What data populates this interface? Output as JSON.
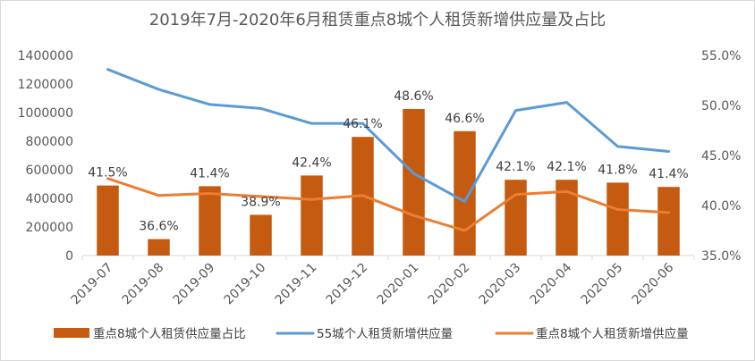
{
  "chart_data": {
    "type": "bar+line",
    "title": "2019年7月-2020年6月租赁重点8城个人租赁新增供应量及占比",
    "categories": [
      "2019-07",
      "2019-08",
      "2019-09",
      "2019-10",
      "2019-11",
      "2019-12",
      "2020-01",
      "2020-02",
      "2020-03",
      "2020-04",
      "2020-05",
      "2020-06"
    ],
    "left_axis": {
      "min": 0,
      "max": 1400000,
      "step": 200000,
      "ticks": [
        "0",
        "200000",
        "400000",
        "600000",
        "800000",
        "1000000",
        "1200000",
        "1400000"
      ]
    },
    "right_axis": {
      "min": 35,
      "max": 55,
      "step": 5,
      "ticks": [
        "35.0%",
        "40.0%",
        "45.0%",
        "50.0%",
        "55.0%"
      ]
    },
    "series": [
      {
        "name": "重点8城个人租赁供应量占比",
        "type": "bar",
        "axis": "left",
        "color": "#c55a11",
        "values": [
          490000,
          115000,
          485000,
          285000,
          560000,
          830000,
          1025000,
          870000,
          530000,
          530000,
          510000,
          480000
        ],
        "data_labels": [
          "41.5%",
          "36.6%",
          "41.4%",
          "38.9%",
          "42.4%",
          "46.1%",
          "48.6%",
          "46.6%",
          "42.1%",
          "42.1%",
          "41.8%",
          "41.4%"
        ]
      },
      {
        "name": "55城个人租赁新增供应量",
        "type": "line",
        "axis": "right",
        "color": "#5b9bd5",
        "values": [
          53.6,
          51.6,
          50.1,
          49.7,
          48.2,
          48.2,
          43.2,
          40.4,
          49.5,
          50.3,
          45.9,
          45.4
        ]
      },
      {
        "name": "重点8城个人租赁新增供应量",
        "type": "line",
        "axis": "right",
        "color": "#ed7d31",
        "values": [
          42.7,
          41.0,
          41.2,
          40.9,
          40.6,
          41.0,
          39.0,
          37.5,
          41.1,
          41.4,
          39.6,
          39.3
        ]
      }
    ],
    "legend_position": "bottom"
  }
}
